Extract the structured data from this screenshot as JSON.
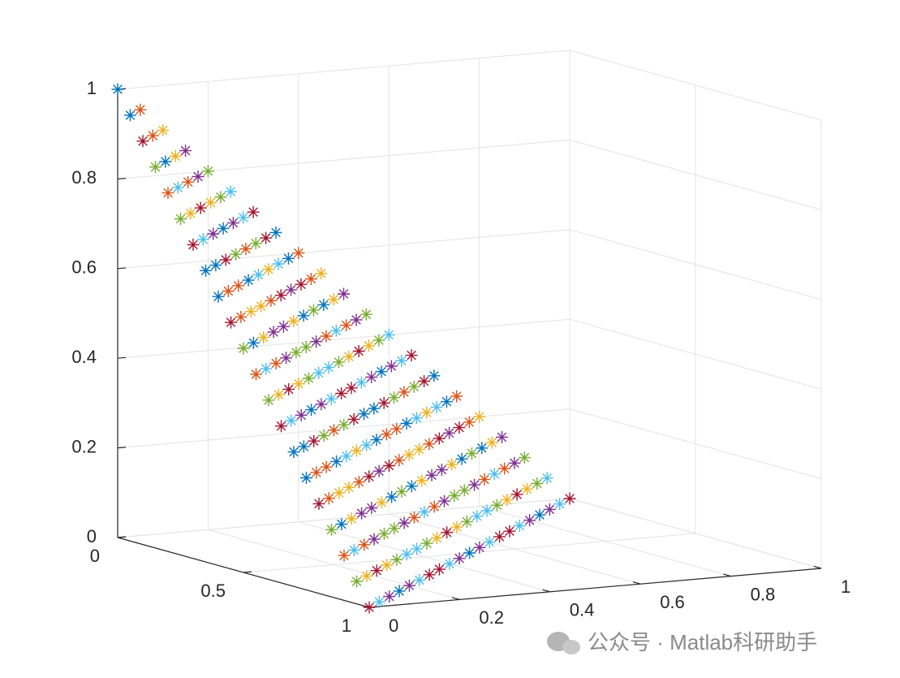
{
  "chart_data": {
    "type": "scatter3d",
    "marker": "asterisk",
    "colors": [
      "#0072BD",
      "#D95319",
      "#EDB120",
      "#7E2F8E",
      "#77AC30",
      "#4DBEEE",
      "#A2142F"
    ],
    "xlim": [
      0,
      1
    ],
    "ylim": [
      0,
      1
    ],
    "zlim": [
      0,
      1
    ],
    "xticks": [
      0,
      0.2,
      0.4,
      0.6,
      0.8,
      1
    ],
    "yticks": [
      0,
      0.5,
      1
    ],
    "zticks": [
      0,
      0.2,
      0.4,
      0.6,
      0.8,
      1
    ],
    "grid": true,
    "watermark": "公众号 · Matlab科研助手",
    "x": [
      0,
      0.05,
      0.1,
      0.15,
      0.2,
      0.25,
      0.3,
      0.35,
      0.4,
      0.45,
      0.5,
      0.55,
      0.6,
      0.65,
      0.7,
      0.75,
      0.8,
      0.85,
      0.9,
      0.95,
      1,
      0,
      0.05,
      0.1,
      0.15,
      0.2,
      0.25,
      0.3,
      0.35,
      0.4,
      0.45,
      0.5,
      0.55,
      0.6,
      0.65,
      0.7,
      0.75,
      0.8,
      0.85,
      0.9,
      0.95,
      0,
      0.05,
      0.1,
      0.15,
      0.2,
      0.25,
      0.3,
      0.35,
      0.4,
      0.45,
      0.5,
      0.55,
      0.6,
      0.65,
      0.7,
      0.75,
      0.8,
      0.85,
      0.9,
      0,
      0.05,
      0.1,
      0.15,
      0.2,
      0.25,
      0.3,
      0.35,
      0.4,
      0.45,
      0.5,
      0.55,
      0.6,
      0.65,
      0.7,
      0.75,
      0.8,
      0.85,
      0,
      0.05,
      0.1,
      0.15,
      0.2,
      0.25,
      0.3,
      0.35,
      0.4,
      0.45,
      0.5,
      0.55,
      0.6,
      0.65,
      0.7,
      0.75,
      0.8,
      0,
      0.05,
      0.1,
      0.15,
      0.2,
      0.25,
      0.3,
      0.35,
      0.4,
      0.45,
      0.5,
      0.55,
      0.6,
      0.65,
      0.7,
      0.75,
      0,
      0.05,
      0.1,
      0.15,
      0.2,
      0.25,
      0.3,
      0.35,
      0.4,
      0.45,
      0.5,
      0.55,
      0.6,
      0.65,
      0.7,
      0,
      0.05,
      0.1,
      0.15,
      0.2,
      0.25,
      0.3,
      0.35,
      0.4,
      0.45,
      0.5,
      0.55,
      0.6,
      0.65,
      0,
      0.05,
      0.1,
      0.15,
      0.2,
      0.25,
      0.3,
      0.35,
      0.4,
      0.45,
      0.5,
      0.55,
      0.6,
      0,
      0.05,
      0.1,
      0.15,
      0.2,
      0.25,
      0.3,
      0.35,
      0.4,
      0.45,
      0.5,
      0.55,
      0,
      0.05,
      0.1,
      0.15,
      0.2,
      0.25,
      0.3,
      0.35,
      0.4,
      0.45,
      0.5,
      0,
      0.05,
      0.1,
      0.15,
      0.2,
      0.25,
      0.3,
      0.35,
      0.4,
      0.45,
      0,
      0.05,
      0.1,
      0.15,
      0.2,
      0.25,
      0.3,
      0.35,
      0.4,
      0,
      0.05,
      0.1,
      0.15,
      0.2,
      0.25,
      0.3,
      0.35,
      0,
      0.05,
      0.1,
      0.15,
      0.2,
      0.25,
      0.3,
      0,
      0.05,
      0.1,
      0.15,
      0.2,
      0.25,
      0,
      0.05,
      0.1,
      0.15,
      0.2,
      0,
      0.05,
      0.1,
      0.15,
      0,
      0.05,
      0.1,
      0,
      0.05,
      0
    ],
    "y": [
      0,
      0,
      0,
      0,
      0,
      0,
      0,
      0,
      0,
      0,
      0,
      0,
      0,
      0,
      0,
      0,
      0,
      0,
      0,
      0,
      0,
      0.05,
      0.05,
      0.05,
      0.05,
      0.05,
      0.05,
      0.05,
      0.05,
      0.05,
      0.05,
      0.05,
      0.05,
      0.05,
      0.05,
      0.05,
      0.05,
      0.05,
      0.05,
      0.05,
      0.05,
      0.1,
      0.1,
      0.1,
      0.1,
      0.1,
      0.1,
      0.1,
      0.1,
      0.1,
      0.1,
      0.1,
      0.1,
      0.1,
      0.1,
      0.1,
      0.1,
      0.1,
      0.1,
      0.1,
      0.15,
      0.15,
      0.15,
      0.15,
      0.15,
      0.15,
      0.15,
      0.15,
      0.15,
      0.15,
      0.15,
      0.15,
      0.15,
      0.15,
      0.15,
      0.15,
      0.15,
      0.15,
      0.2,
      0.2,
      0.2,
      0.2,
      0.2,
      0.2,
      0.2,
      0.2,
      0.2,
      0.2,
      0.2,
      0.2,
      0.2,
      0.2,
      0.2,
      0.2,
      0.2,
      0.25,
      0.25,
      0.25,
      0.25,
      0.25,
      0.25,
      0.25,
      0.25,
      0.25,
      0.25,
      0.25,
      0.25,
      0.25,
      0.25,
      0.25,
      0.25,
      0.3,
      0.3,
      0.3,
      0.3,
      0.3,
      0.3,
      0.3,
      0.3,
      0.3,
      0.3,
      0.3,
      0.3,
      0.3,
      0.3,
      0.3,
      0.35,
      0.35,
      0.35,
      0.35,
      0.35,
      0.35,
      0.35,
      0.35,
      0.35,
      0.35,
      0.35,
      0.35,
      0.35,
      0.35,
      0.4,
      0.4,
      0.4,
      0.4,
      0.4,
      0.4,
      0.4,
      0.4,
      0.4,
      0.4,
      0.4,
      0.4,
      0.4,
      0.45,
      0.45,
      0.45,
      0.45,
      0.45,
      0.45,
      0.45,
      0.45,
      0.45,
      0.45,
      0.45,
      0.45,
      0.5,
      0.5,
      0.5,
      0.5,
      0.5,
      0.5,
      0.5,
      0.5,
      0.5,
      0.5,
      0.5,
      0.55,
      0.55,
      0.55,
      0.55,
      0.55,
      0.55,
      0.55,
      0.55,
      0.55,
      0.55,
      0.6,
      0.6,
      0.6,
      0.6,
      0.6,
      0.6,
      0.6,
      0.6,
      0.6,
      0.65,
      0.65,
      0.65,
      0.65,
      0.65,
      0.65,
      0.65,
      0.65,
      0.7,
      0.7,
      0.7,
      0.7,
      0.7,
      0.7,
      0.7,
      0.75,
      0.75,
      0.75,
      0.75,
      0.75,
      0.75,
      0.8,
      0.8,
      0.8,
      0.8,
      0.8,
      0.85,
      0.85,
      0.85,
      0.85,
      0.9,
      0.9,
      0.9,
      0.95,
      0.95,
      1
    ],
    "z": [
      1,
      0.95,
      0.9,
      0.85,
      0.8,
      0.75,
      0.7,
      0.65,
      0.6,
      0.55,
      0.5,
      0.45,
      0.4,
      0.35,
      0.3,
      0.25,
      0.2,
      0.15,
      0.1,
      0.05,
      0,
      0.95,
      0.9,
      0.85,
      0.8,
      0.75,
      0.7,
      0.65,
      0.6,
      0.55,
      0.5,
      0.45,
      0.4,
      0.35,
      0.3,
      0.25,
      0.2,
      0.15,
      0.1,
      0.05,
      0,
      0.9,
      0.85,
      0.8,
      0.75,
      0.7,
      0.65,
      0.6,
      0.55,
      0.5,
      0.45,
      0.4,
      0.35,
      0.3,
      0.25,
      0.2,
      0.15,
      0.1,
      0.05,
      0,
      0.85,
      0.8,
      0.75,
      0.7,
      0.65,
      0.6,
      0.55,
      0.5,
      0.45,
      0.4,
      0.35,
      0.3,
      0.25,
      0.2,
      0.15,
      0.1,
      0.05,
      0,
      0.8,
      0.75,
      0.7,
      0.65,
      0.6,
      0.55,
      0.5,
      0.45,
      0.4,
      0.35,
      0.3,
      0.25,
      0.2,
      0.15,
      0.1,
      0.05,
      0,
      0.75,
      0.7,
      0.65,
      0.6,
      0.55,
      0.5,
      0.45,
      0.4,
      0.35,
      0.3,
      0.25,
      0.2,
      0.15,
      0.1,
      0.05,
      0,
      0.7,
      0.65,
      0.6,
      0.55,
      0.5,
      0.45,
      0.4,
      0.35,
      0.3,
      0.25,
      0.2,
      0.15,
      0.1,
      0.05,
      0,
      0.65,
      0.6,
      0.55,
      0.5,
      0.45,
      0.4,
      0.35,
      0.3,
      0.25,
      0.2,
      0.15,
      0.1,
      0.05,
      0,
      0.6,
      0.55,
      0.5,
      0.45,
      0.4,
      0.35,
      0.3,
      0.25,
      0.2,
      0.15,
      0.1,
      0.05,
      0,
      0.55,
      0.5,
      0.45,
      0.4,
      0.35,
      0.3,
      0.25,
      0.2,
      0.15,
      0.1,
      0.05,
      0,
      0.5,
      0.45,
      0.4,
      0.35,
      0.3,
      0.25,
      0.2,
      0.15,
      0.1,
      0.05,
      0,
      0.45,
      0.4,
      0.35,
      0.3,
      0.25,
      0.2,
      0.15,
      0.1,
      0.05,
      0,
      0.4,
      0.35,
      0.3,
      0.25,
      0.2,
      0.15,
      0.1,
      0.05,
      0,
      0.35,
      0.3,
      0.25,
      0.2,
      0.15,
      0.1,
      0.05,
      0,
      0.3,
      0.25,
      0.2,
      0.15,
      0.1,
      0.05,
      0,
      0.25,
      0.2,
      0.15,
      0.1,
      0.05,
      0,
      0.2,
      0.15,
      0.1,
      0.05,
      0,
      0.15,
      0.1,
      0.05,
      0,
      0.1,
      0.05,
      0,
      0.05,
      0,
      0
    ]
  }
}
